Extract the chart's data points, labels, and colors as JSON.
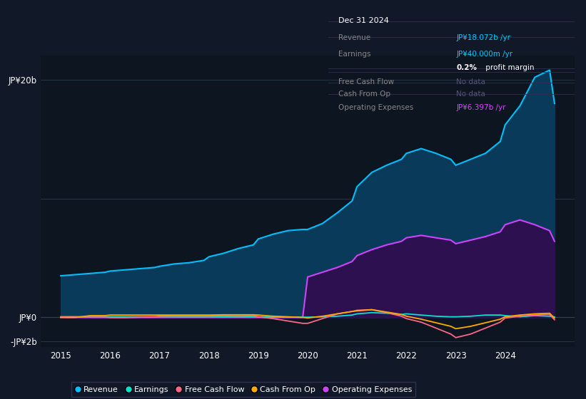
{
  "bg_color": "#111827",
  "plot_bg_color": "#0d1520",
  "chart_bg": "#0d1520",
  "grid_color": "#1e3a50",
  "ylim": [
    -2.5,
    22
  ],
  "xlim": [
    2014.6,
    2025.4
  ],
  "xticks": [
    2015,
    2016,
    2017,
    2018,
    2019,
    2020,
    2021,
    2022,
    2023,
    2024
  ],
  "years": [
    2015.0,
    2015.3,
    2015.6,
    2015.9,
    2016.0,
    2016.3,
    2016.6,
    2016.9,
    2017.0,
    2017.3,
    2017.6,
    2017.9,
    2018.0,
    2018.3,
    2018.6,
    2018.9,
    2019.0,
    2019.3,
    2019.6,
    2019.9,
    2020.0,
    2020.3,
    2020.6,
    2020.9,
    2021.0,
    2021.3,
    2021.6,
    2021.9,
    2022.0,
    2022.3,
    2022.6,
    2022.9,
    2023.0,
    2023.3,
    2023.6,
    2023.9,
    2024.0,
    2024.3,
    2024.6,
    2024.9,
    2025.0
  ],
  "revenue": [
    3.5,
    3.6,
    3.7,
    3.8,
    3.9,
    4.0,
    4.1,
    4.2,
    4.3,
    4.5,
    4.6,
    4.8,
    5.1,
    5.4,
    5.8,
    6.1,
    6.6,
    7.0,
    7.3,
    7.4,
    7.4,
    7.9,
    8.8,
    9.8,
    11.0,
    12.2,
    12.8,
    13.3,
    13.8,
    14.2,
    13.8,
    13.3,
    12.8,
    13.3,
    13.8,
    14.8,
    16.2,
    17.8,
    20.2,
    20.8,
    18.0
  ],
  "operating_expenses": [
    0.0,
    0.0,
    0.0,
    0.0,
    0.0,
    0.0,
    0.0,
    0.0,
    0.0,
    0.0,
    0.0,
    0.0,
    0.0,
    0.0,
    0.0,
    0.0,
    0.0,
    0.0,
    0.0,
    0.0,
    3.4,
    3.8,
    4.2,
    4.7,
    5.2,
    5.7,
    6.1,
    6.4,
    6.7,
    6.9,
    6.7,
    6.5,
    6.2,
    6.5,
    6.8,
    7.2,
    7.8,
    8.2,
    7.8,
    7.3,
    6.4
  ],
  "earnings": [
    0.05,
    0.05,
    0.05,
    0.05,
    0.05,
    0.05,
    0.05,
    0.05,
    0.05,
    0.05,
    0.05,
    0.05,
    0.05,
    0.05,
    0.05,
    0.05,
    0.05,
    0.02,
    0.02,
    0.02,
    0.02,
    0.05,
    0.1,
    0.2,
    0.3,
    0.4,
    0.35,
    0.25,
    0.3,
    0.2,
    0.1,
    0.05,
    0.05,
    0.1,
    0.2,
    0.2,
    0.15,
    0.05,
    0.15,
    0.1,
    0.04
  ],
  "free_cash_flow": [
    0.05,
    0.05,
    0.02,
    0.02,
    -0.02,
    -0.02,
    0.02,
    0.05,
    0.1,
    0.12,
    0.12,
    0.12,
    0.12,
    0.15,
    0.12,
    0.15,
    0.05,
    -0.1,
    -0.3,
    -0.5,
    -0.5,
    -0.1,
    0.3,
    0.5,
    0.6,
    0.65,
    0.4,
    0.1,
    -0.1,
    -0.4,
    -0.9,
    -1.4,
    -1.7,
    -1.4,
    -0.9,
    -0.4,
    -0.05,
    0.1,
    0.2,
    0.25,
    -0.2
  ],
  "cash_from_op": [
    0.0,
    0.0,
    0.15,
    0.15,
    0.2,
    0.2,
    0.2,
    0.2,
    0.2,
    0.2,
    0.2,
    0.2,
    0.2,
    0.22,
    0.22,
    0.22,
    0.2,
    0.1,
    0.05,
    0.0,
    -0.05,
    0.1,
    0.3,
    0.5,
    0.55,
    0.65,
    0.45,
    0.25,
    0.1,
    -0.15,
    -0.45,
    -0.75,
    -0.95,
    -0.75,
    -0.45,
    -0.15,
    0.05,
    0.2,
    0.3,
    0.35,
    -0.05
  ],
  "revenue_color": "#00bfff",
  "revenue_fill": "#0a3a5a",
  "earnings_color": "#00e5cc",
  "fcf_color": "#ff6688",
  "cashop_color": "#ffaa00",
  "opex_color": "#cc44ff",
  "opex_fill": "#2d1050",
  "legend_labels": [
    "Revenue",
    "Earnings",
    "Free Cash Flow",
    "Cash From Op",
    "Operating Expenses"
  ],
  "info_box_title": "Dec 31 2024",
  "info_revenue_label": "Revenue",
  "info_revenue_value": "JP¥18.072b /yr",
  "info_earnings_label": "Earnings",
  "info_earnings_value": "JP¥40.000m /yr",
  "info_margin_bold": "0.2%",
  "info_margin_rest": " profit margin",
  "info_fcf_label": "Free Cash Flow",
  "info_fcf_value": "No data",
  "info_cashop_label": "Cash From Op",
  "info_cashop_value": "No data",
  "info_opex_label": "Operating Expenses",
  "info_opex_value": "JP¥6.397b /yr",
  "info_cyan": "#00ccff",
  "info_magenta": "#dd44ff",
  "info_gray": "#888888",
  "info_nodata": "#555577"
}
